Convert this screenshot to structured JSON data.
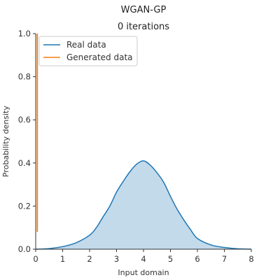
{
  "chart_data": {
    "type": "area",
    "title": "WGAN-GP",
    "subtitle": "0 iterations",
    "xlabel": "Input domain",
    "ylabel": "Probability density",
    "xlim": [
      0,
      8
    ],
    "ylim": [
      0,
      1.0
    ],
    "xticks": [
      "0",
      "1",
      "2",
      "3",
      "4",
      "5",
      "6",
      "7",
      "8"
    ],
    "yticks": [
      "0.0",
      "0.2",
      "0.4",
      "0.6",
      "0.8",
      "1.0"
    ],
    "grid": false,
    "legend_position": "top-left",
    "series": [
      {
        "name": "Real data",
        "color": "#1f77b4",
        "fill": "#c3daeb",
        "x": [
          0,
          0.5,
          1,
          1.5,
          2,
          2.25,
          2.5,
          2.75,
          3,
          3.25,
          3.5,
          3.75,
          4,
          4.25,
          4.5,
          4.75,
          5,
          5.25,
          5.5,
          5.75,
          6,
          6.5,
          7,
          7.5,
          8
        ],
        "values": [
          0.0,
          0.003,
          0.012,
          0.03,
          0.065,
          0.1,
          0.15,
          0.2,
          0.265,
          0.315,
          0.36,
          0.395,
          0.41,
          0.39,
          0.355,
          0.31,
          0.245,
          0.185,
          0.135,
          0.09,
          0.05,
          0.02,
          0.008,
          0.002,
          0.0
        ]
      },
      {
        "name": "Generated data",
        "color": "#ff7f0e",
        "x": [
          0.06,
          0.06
        ],
        "values": [
          0.08,
          1.0
        ]
      }
    ]
  }
}
